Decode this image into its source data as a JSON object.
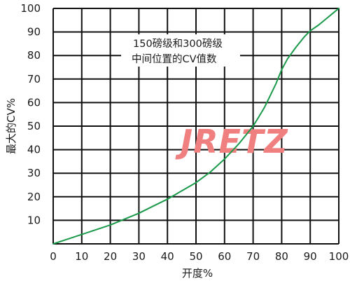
{
  "chart_data": {
    "type": "line",
    "xlabel": "开度%",
    "ylabel": "最大的CV%",
    "xlim": [
      0,
      100
    ],
    "ylim": [
      0,
      100
    ],
    "xticks": [
      "0",
      "10",
      "20",
      "30",
      "40",
      "50",
      "60",
      "70",
      "80",
      "90",
      "100"
    ],
    "yticks": [
      "10",
      "20",
      "30",
      "40",
      "50",
      "60",
      "70",
      "80",
      "90",
      "100"
    ],
    "grid": true,
    "annotation": [
      "150磅级和300磅级",
      "中间位置的CV值数"
    ],
    "watermark": "JRETZ",
    "series": [
      {
        "color": "#1a9a4a",
        "x": [
          0,
          5,
          10,
          15,
          20,
          25,
          30,
          35,
          40,
          45,
          50,
          55,
          60,
          65,
          70,
          72,
          74,
          76,
          78,
          80,
          82,
          85,
          88,
          90,
          93,
          96,
          98,
          100
        ],
        "y": [
          0,
          2,
          4,
          6,
          8,
          10.5,
          13,
          16,
          19,
          22.5,
          26,
          30.5,
          36,
          42.5,
          50,
          54,
          58,
          63,
          68,
          74,
          78.5,
          83.5,
          88,
          90.5,
          93,
          96,
          98,
          100
        ]
      }
    ]
  }
}
